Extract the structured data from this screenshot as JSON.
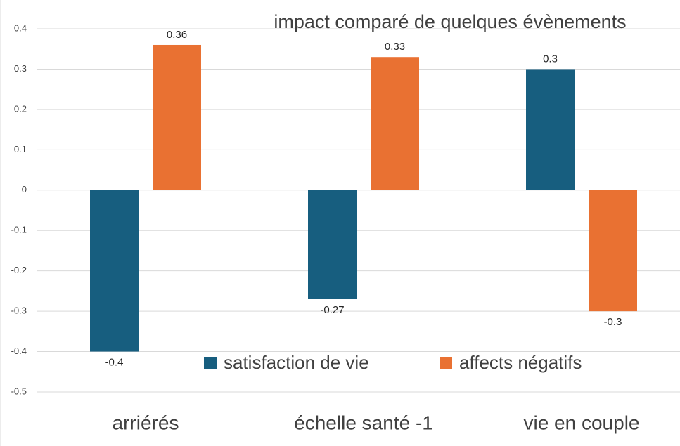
{
  "chart_data": {
    "type": "bar",
    "title": "impact comparé de quelques évènements",
    "categories": [
      "arriérés",
      "échelle santé -1",
      "vie en couple"
    ],
    "series": [
      {
        "name": "satisfaction de vie",
        "color": "#175e7f",
        "values": [
          -0.4,
          -0.27,
          0.3
        ]
      },
      {
        "name": "affects négatifs",
        "color": "#e97132",
        "values": [
          0.36,
          0.33,
          -0.3
        ]
      }
    ],
    "ylim": [
      -0.5,
      0.4
    ],
    "yticks": [
      0.4,
      0.3,
      0.2,
      0.1,
      0,
      -0.1,
      -0.2,
      -0.3,
      -0.4,
      -0.5
    ],
    "grid": true
  }
}
